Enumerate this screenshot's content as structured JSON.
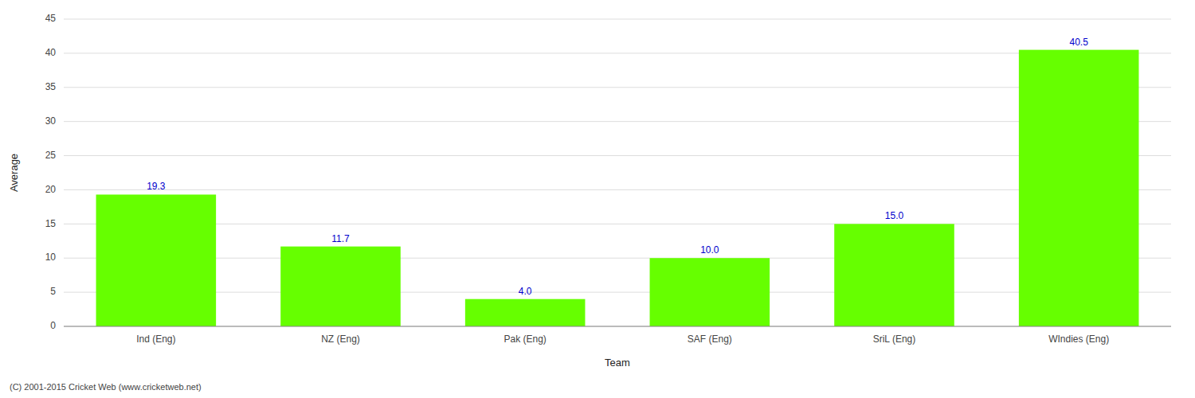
{
  "chart_data": {
    "type": "bar",
    "categories": [
      "Ind (Eng)",
      "NZ (Eng)",
      "Pak (Eng)",
      "SAF (Eng)",
      "SriL (Eng)",
      "WIndies (Eng)"
    ],
    "values": [
      19.3,
      11.7,
      4.0,
      10.0,
      15.0,
      40.5
    ],
    "value_labels": [
      "19.3",
      "11.7",
      "4.0",
      "10.0",
      "15.0",
      "40.5"
    ],
    "data_labels": true,
    "color": "#66ff00",
    "x_label": "Team",
    "y_label": "Average",
    "ylim": [
      0,
      45
    ],
    "yticks": [
      0,
      5,
      10,
      15,
      20,
      25,
      30,
      35,
      40,
      45
    ],
    "grid": true,
    "annotations": [
      "(C) 2001-2015 Cricket Web (www.cricketweb.net)"
    ]
  }
}
